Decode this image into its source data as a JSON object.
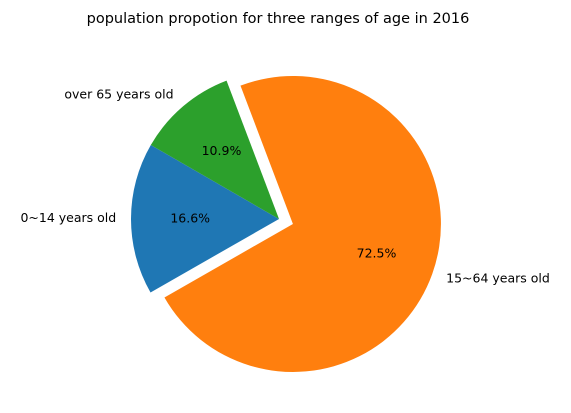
{
  "chart_data": {
    "type": "pie",
    "title": "population propotion for three ranges of age in 2016",
    "slices": [
      {
        "label": "0~14 years old",
        "value": 16.6,
        "pct_label": "16.6%",
        "color": "#1f77b4",
        "explode": 0.0
      },
      {
        "label": "15~64 years old",
        "value": 72.5,
        "pct_label": "72.5%",
        "color": "#ff7f0e",
        "explode": 0.1
      },
      {
        "label": "over 65 years old",
        "value": 10.9,
        "pct_label": "10.9%",
        "color": "#2ca02c",
        "explode": 0.0
      }
    ],
    "start_angle_deg": 150,
    "direction": "counterclockwise",
    "legend": "none"
  }
}
